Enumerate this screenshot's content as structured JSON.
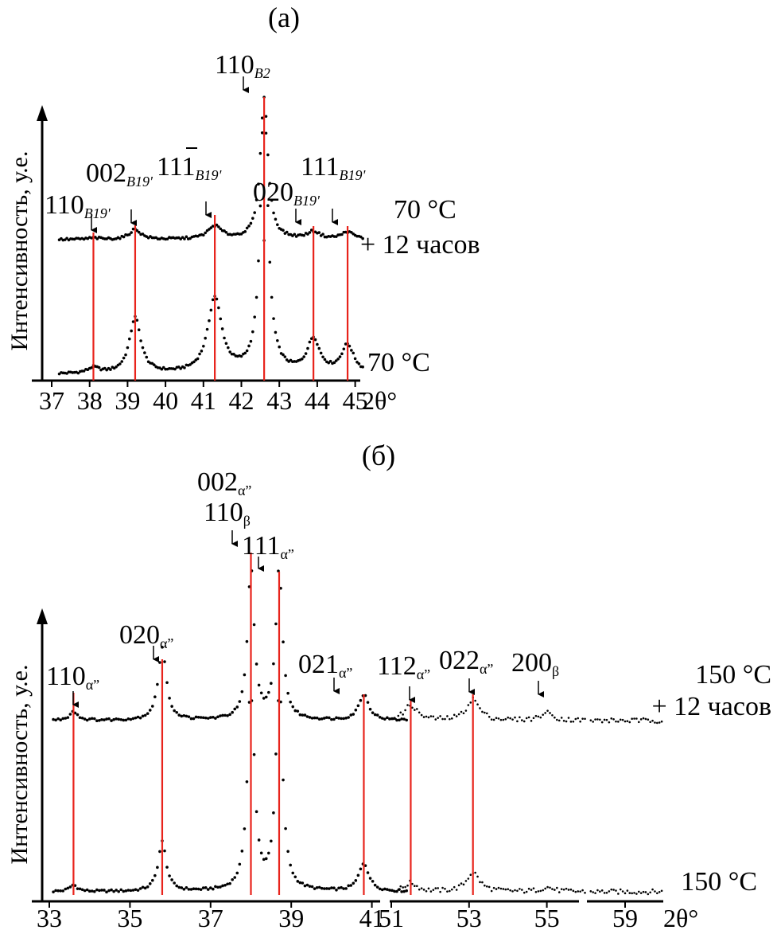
{
  "figure": {
    "panels": [
      {
        "id": "a",
        "label": "(а)",
        "ylabel": "Интенсивность, у.е.",
        "xunit": "2θ°",
        "xticks": [
          "37",
          "38",
          "39",
          "40",
          "41",
          "42",
          "43",
          "44",
          "45"
        ],
        "lines": [
          38.1,
          39.2,
          41.3,
          42.6,
          43.9,
          44.8
        ],
        "peak_labels": [
          {
            "main": "110",
            "sub": "B19'"
          },
          {
            "main": "002",
            "sub": "B19'"
          },
          {
            "main": "111",
            "sub": "B19'",
            "bar_index": 2
          },
          {
            "main": "110",
            "sub": "B2"
          },
          {
            "main": "020",
            "sub": "B19'"
          },
          {
            "main": "111",
            "sub": "B19'"
          }
        ],
        "traces": [
          {
            "label": "70 °C"
          },
          {
            "label_line1": "70 °C",
            "label_line2": "+ 12 часов"
          }
        ]
      },
      {
        "id": "b",
        "label": "(б)",
        "ylabel": "Интенсивность, у.е.",
        "xunit": "2θ°",
        "xticks": [
          "33",
          "35",
          "37",
          "39",
          "41",
          "51",
          "53",
          "55",
          "59"
        ],
        "lines": [
          33.6,
          35.8,
          38.0,
          38.7,
          40.8,
          51.5,
          53.1
        ],
        "peak_labels": [
          {
            "main": "110",
            "sub": "α”"
          },
          {
            "main": "020",
            "sub": "α”"
          },
          {
            "main": "002",
            "sub": "α”"
          },
          {
            "main": "110",
            "sub": "β"
          },
          {
            "main": "111",
            "sub": "α”"
          },
          {
            "main": "021",
            "sub": "α”"
          },
          {
            "main": "112",
            "sub": "α”"
          },
          {
            "main": "022",
            "sub": "α”"
          },
          {
            "main": "200",
            "sub": "β"
          }
        ],
        "traces": [
          {
            "label": "150 °C"
          },
          {
            "label_line1": "150 °C",
            "label_line2": "+ 12 часов"
          }
        ]
      }
    ]
  },
  "chart_data": [
    {
      "type": "scatter",
      "title": "(а)",
      "ylabel": "Интенсивность, у.е.",
      "xlabel": "2θ°",
      "xlim": [
        37,
        45.3
      ],
      "x_ticks": [
        37,
        38,
        39,
        40,
        41,
        42,
        43,
        44,
        45
      ],
      "series": [
        {
          "name": "70 °C",
          "peaks": [
            {
              "x": 38.1,
              "hkl": "110 B19'",
              "rel_height": 0.02
            },
            {
              "x": 39.2,
              "hkl": "002 B19'",
              "rel_height": 0.2
            },
            {
              "x": 41.3,
              "hkl": "111̄ B19'",
              "rel_height": 0.27
            },
            {
              "x": 42.6,
              "hkl": "110 B2",
              "rel_height": 1.0
            },
            {
              "x": 43.9,
              "hkl": "020 B19'",
              "rel_height": 0.12
            },
            {
              "x": 44.8,
              "hkl": "111 B19'",
              "rel_height": 0.1
            }
          ]
        },
        {
          "name": "70 °C + 12 часов",
          "peaks": [
            {
              "x": 38.1,
              "hkl": "110 B19'",
              "rel_height": 0.01
            },
            {
              "x": 39.2,
              "hkl": "002 B19'",
              "rel_height": 0.07
            },
            {
              "x": 41.3,
              "hkl": "111̄ B19'",
              "rel_height": 0.09
            },
            {
              "x": 42.6,
              "hkl": "110 B2",
              "rel_height": 1.0
            },
            {
              "x": 43.9,
              "hkl": "020 B19'",
              "rel_height": 0.05
            },
            {
              "x": 44.8,
              "hkl": "111 B19'",
              "rel_height": 0.05
            }
          ]
        }
      ],
      "grid": false
    },
    {
      "type": "scatter",
      "title": "(б)",
      "ylabel": "Интенсивность, у.е.",
      "xlabel": "2θ°",
      "x_ranges": [
        [
          33,
          42
        ],
        [
          51,
          56
        ],
        [
          58,
          60
        ]
      ],
      "x_ticks": [
        33,
        35,
        37,
        39,
        41,
        51,
        53,
        55,
        59
      ],
      "series": [
        {
          "name": "150 °C",
          "peaks": [
            {
              "x": 33.6,
              "hkl": "110 α”",
              "rel_height": 0.03
            },
            {
              "x": 35.8,
              "hkl": "020 α”",
              "rel_height": 0.23
            },
            {
              "x": 38.0,
              "hkl": "002 α” / 110 β",
              "rel_height": 1.0
            },
            {
              "x": 38.7,
              "hkl": "111 α”",
              "rel_height": 1.0
            },
            {
              "x": 40.8,
              "hkl": "021 α”",
              "rel_height": 0.13
            },
            {
              "x": 51.5,
              "hkl": "112 α”",
              "rel_height": 0.04
            },
            {
              "x": 53.1,
              "hkl": "022 α”",
              "rel_height": 0.09
            },
            {
              "x": 55.0,
              "hkl": "200 β",
              "rel_height": 0.02
            }
          ]
        },
        {
          "name": "150 °C + 12 часов",
          "peaks": [
            {
              "x": 33.6,
              "hkl": "110 α”",
              "rel_height": 0.06
            },
            {
              "x": 35.8,
              "hkl": "020 α”",
              "rel_height": 0.48
            },
            {
              "x": 38.0,
              "hkl": "002 α” / 110 β",
              "rel_height": 1.0
            },
            {
              "x": 38.7,
              "hkl": "111 α”",
              "rel_height": 1.0
            },
            {
              "x": 40.8,
              "hkl": "021 α”",
              "rel_height": 0.17
            },
            {
              "x": 51.5,
              "hkl": "112 α”",
              "rel_height": 0.1
            },
            {
              "x": 53.1,
              "hkl": "022 α”",
              "rel_height": 0.14
            },
            {
              "x": 55.0,
              "hkl": "200 β",
              "rel_height": 0.05
            }
          ]
        }
      ],
      "grid": false
    }
  ]
}
